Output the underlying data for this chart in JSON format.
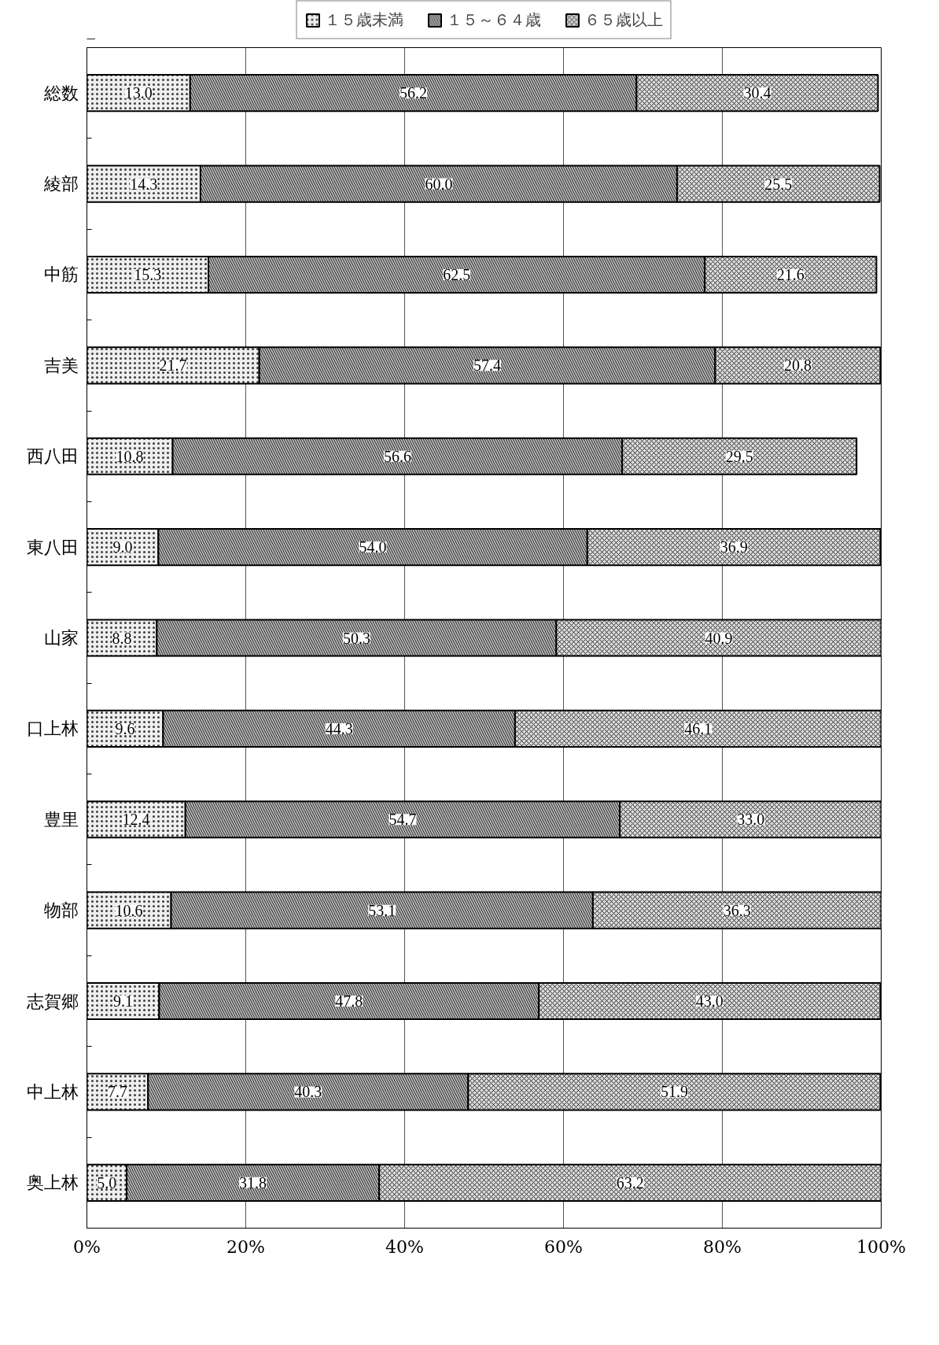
{
  "chart_data": {
    "type": "bar",
    "orientation": "horizontal",
    "stacked": true,
    "grid": "x",
    "legend": "top",
    "categories": [
      "総数",
      "綾部",
      "中筋",
      "吉美",
      "西八田",
      "東八田",
      "山家",
      "口上林",
      "豊里",
      "物部",
      "志賀郷",
      "中上林",
      "奥上林"
    ],
    "series": [
      {
        "name": "１５歳未満",
        "color": "#eeeeee",
        "values": [
          13.0,
          14.3,
          15.3,
          21.7,
          10.8,
          9.0,
          8.8,
          9.6,
          12.4,
          10.6,
          9.1,
          7.7,
          5.0
        ],
        "value_labels": [
          "13.0",
          "14.3",
          "15.3",
          "21.7",
          "10.8",
          "9.0",
          "8.8",
          "9.6",
          "12.4",
          "10.6",
          "9.1",
          "7.7",
          "5.0"
        ]
      },
      {
        "name": "１５～６４歳",
        "color": "#b4b4b4",
        "values": [
          56.2,
          60.0,
          62.5,
          57.4,
          56.6,
          54.0,
          50.3,
          44.3,
          54.7,
          53.1,
          47.8,
          40.3,
          31.8
        ],
        "value_labels": [
          "56.2",
          "60.0",
          "62.5",
          "57.4",
          "56.6",
          "54.0",
          "50.3",
          "44.3",
          "54.7",
          "53.1",
          "47.8",
          "40.3",
          "31.8"
        ]
      },
      {
        "name": "６５歳以上",
        "color": "#d8d8d8",
        "values": [
          30.4,
          25.5,
          21.6,
          20.8,
          29.5,
          36.9,
          40.9,
          46.1,
          33.0,
          36.3,
          43.0,
          51.9,
          63.2
        ],
        "value_labels": [
          "30.4",
          "25.5",
          "21.6",
          "20.8",
          "29.5",
          "36.9",
          "40.9",
          "46.1",
          "33.0",
          "36.3",
          "43.0",
          "51.9",
          "63.2"
        ]
      }
    ],
    "xlim": [
      0,
      100
    ],
    "xticks": [
      {
        "value": 0,
        "label": "0%"
      },
      {
        "value": 20,
        "label": "20%"
      },
      {
        "value": 40,
        "label": "40%"
      },
      {
        "value": 60,
        "label": "60%"
      },
      {
        "value": 80,
        "label": "80%"
      },
      {
        "value": 100,
        "label": "100%"
      }
    ]
  }
}
